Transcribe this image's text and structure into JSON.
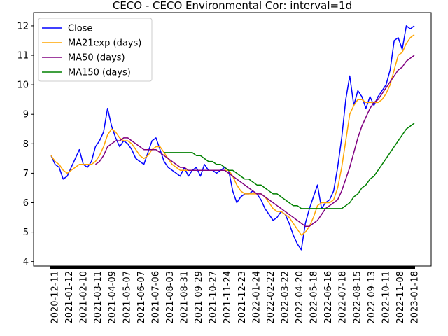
{
  "chart_data": {
    "type": "line",
    "title": "CECO - CECO Environmental Cor: interval=1d",
    "xlabel": "",
    "ylabel": "",
    "x_ticks": [
      "2020-12-11",
      "2021-01-12",
      "2021-02-10",
      "2021-03-11",
      "2021-04-09",
      "2021-05-07",
      "2021-06-07",
      "2021-07-06",
      "2021-08-03",
      "2021-08-31",
      "2021-09-29",
      "2021-10-27",
      "2021-11-24",
      "2021-12-23",
      "2022-01-24",
      "2022-02-22",
      "2022-03-22",
      "2022-04-20",
      "2022-05-18",
      "2022-06-16",
      "2022-07-18",
      "2022-08-15",
      "2022-09-13",
      "2022-10-11",
      "2022-11-08",
      "2023-01-18"
    ],
    "y_ticks": [
      4,
      5,
      6,
      7,
      8,
      9,
      10,
      11,
      12
    ],
    "ylim": [
      3.85,
      12.45
    ],
    "grid": false,
    "legend_position": "upper-left",
    "series": [
      {
        "name": "Close",
        "color": "#0000ff",
        "values": [
          7.6,
          7.3,
          7.2,
          6.8,
          6.9,
          7.2,
          7.5,
          7.8,
          7.3,
          7.2,
          7.4,
          7.9,
          8.1,
          8.4,
          9.2,
          8.6,
          8.2,
          7.9,
          8.1,
          8.0,
          7.8,
          7.5,
          7.4,
          7.3,
          7.7,
          8.1,
          8.2,
          7.8,
          7.4,
          7.2,
          7.1,
          7.0,
          6.9,
          7.2,
          6.9,
          7.1,
          7.2,
          6.9,
          7.3,
          7.1,
          7.1,
          7.0,
          7.1,
          7.2,
          7.1,
          6.4,
          6.0,
          6.2,
          6.3,
          6.3,
          6.4,
          6.3,
          6.1,
          5.8,
          5.6,
          5.4,
          5.5,
          5.7,
          5.6,
          5.3,
          4.9,
          4.6,
          4.4,
          5.3,
          5.8,
          6.2,
          6.6,
          5.8,
          6.0,
          6.1,
          6.4,
          7.2,
          8.2,
          9.5,
          10.3,
          9.3,
          9.8,
          9.6,
          9.2,
          9.6,
          9.3,
          9.6,
          9.8,
          10.0,
          10.5,
          11.5,
          11.6,
          11.2,
          12.0,
          11.9,
          12.0
        ]
      },
      {
        "name": "MA21exp (days)",
        "color": "#ffa500",
        "values": [
          7.6,
          7.4,
          7.3,
          7.1,
          7.0,
          7.1,
          7.2,
          7.3,
          7.3,
          7.3,
          7.3,
          7.4,
          7.6,
          7.9,
          8.3,
          8.5,
          8.4,
          8.2,
          8.1,
          8.1,
          8.0,
          7.8,
          7.6,
          7.5,
          7.6,
          7.8,
          7.9,
          7.9,
          7.7,
          7.5,
          7.3,
          7.2,
          7.1,
          7.1,
          7.1,
          7.1,
          7.1,
          7.1,
          7.1,
          7.1,
          7.1,
          7.1,
          7.1,
          7.1,
          7.1,
          6.9,
          6.6,
          6.4,
          6.3,
          6.3,
          6.3,
          6.3,
          6.3,
          6.2,
          6.0,
          5.8,
          5.7,
          5.7,
          5.6,
          5.5,
          5.3,
          5.1,
          4.9,
          5.0,
          5.2,
          5.5,
          5.9,
          6.0,
          6.0,
          6.0,
          6.1,
          6.5,
          7.2,
          8.1,
          9.0,
          9.3,
          9.5,
          9.5,
          9.4,
          9.4,
          9.4,
          9.4,
          9.5,
          9.7,
          10.0,
          10.5,
          11.0,
          11.1,
          11.4,
          11.6,
          11.7
        ]
      },
      {
        "name": "MA50 (days)",
        "color": "#800080",
        "values": [
          null,
          null,
          null,
          null,
          null,
          null,
          null,
          null,
          null,
          null,
          null,
          7.3,
          7.4,
          7.6,
          7.9,
          8.0,
          8.1,
          8.1,
          8.2,
          8.2,
          8.1,
          8.0,
          7.9,
          7.8,
          7.8,
          7.8,
          7.8,
          7.7,
          7.6,
          7.5,
          7.4,
          7.3,
          7.2,
          7.2,
          7.1,
          7.1,
          7.1,
          7.1,
          7.1,
          7.1,
          7.1,
          7.1,
          7.1,
          7.1,
          7.0,
          6.9,
          6.8,
          6.7,
          6.6,
          6.5,
          6.4,
          6.3,
          6.3,
          6.2,
          6.1,
          6.0,
          5.9,
          5.8,
          5.7,
          5.6,
          5.5,
          5.4,
          5.3,
          5.2,
          5.2,
          5.3,
          5.4,
          5.6,
          5.8,
          5.9,
          6.0,
          6.1,
          6.4,
          6.8,
          7.2,
          7.7,
          8.2,
          8.6,
          8.9,
          9.2,
          9.4,
          9.5,
          9.7,
          9.9,
          10.1,
          10.3,
          10.5,
          10.6,
          10.8,
          10.9,
          11.0
        ]
      },
      {
        "name": "MA150 (days)",
        "color": "#008000",
        "values": [
          null,
          null,
          null,
          null,
          null,
          null,
          null,
          null,
          null,
          null,
          null,
          null,
          null,
          null,
          null,
          null,
          null,
          null,
          null,
          null,
          null,
          null,
          null,
          null,
          null,
          null,
          null,
          null,
          7.7,
          7.7,
          7.7,
          7.7,
          7.7,
          7.7,
          7.7,
          7.7,
          7.6,
          7.6,
          7.5,
          7.4,
          7.4,
          7.3,
          7.3,
          7.2,
          7.1,
          7.1,
          7.0,
          6.9,
          6.8,
          6.8,
          6.7,
          6.6,
          6.6,
          6.5,
          6.4,
          6.3,
          6.3,
          6.2,
          6.1,
          6.0,
          5.9,
          5.9,
          5.8,
          5.8,
          5.8,
          5.8,
          5.8,
          5.8,
          5.8,
          5.8,
          5.8,
          5.8,
          5.8,
          5.9,
          6.0,
          6.2,
          6.3,
          6.5,
          6.6,
          6.8,
          6.9,
          7.1,
          7.3,
          7.5,
          7.7,
          7.9,
          8.1,
          8.3,
          8.5,
          8.6,
          8.7
        ]
      }
    ]
  }
}
